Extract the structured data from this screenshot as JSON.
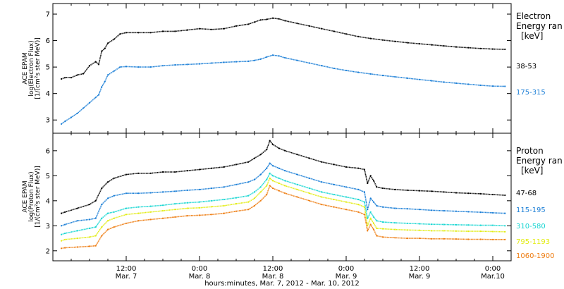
{
  "colors": {
    "black": "#000000",
    "blue": "#1a7ed6",
    "cyan": "#18d6d2",
    "yellow": "#e2ec14",
    "orange": "#ee7d12"
  },
  "x_axis": {
    "label": "hours:minutes, Mar.  7, 2012 - Mar. 10, 2012",
    "ticks": [
      {
        "time": "12:00",
        "date": "Mar. 7",
        "hours": 12
      },
      {
        "time": "0:00",
        "date": "Mar. 8",
        "hours": 24
      },
      {
        "time": "12:00",
        "date": "Mar. 8",
        "hours": 36
      },
      {
        "time": "0:00",
        "date": "Mar. 9",
        "hours": 48
      },
      {
        "time": "12:00",
        "date": "Mar. 9",
        "hours": 60
      },
      {
        "time": "0:00",
        "date": "Mar.10",
        "hours": 72
      }
    ]
  },
  "chart_data": [
    {
      "type": "scatter",
      "ylabel_line1": "ACE EPAM",
      "ylabel_line2": "log(Electron Flux)",
      "ylabel_line3": "[1/(cm²s ster MeV)]",
      "ylim": [
        2.5,
        7.4
      ],
      "yticks": [
        3,
        4,
        5,
        6,
        7
      ],
      "legend_title_line1": "Electron",
      "legend_title_line2": "Energy ran",
      "legend_unit": "[keV]",
      "series": [
        {
          "name": "38-53",
          "color": "#000000",
          "x": [
            1.4,
            2,
            3,
            4,
            5,
            6,
            7,
            7.5,
            8,
            8.5,
            9,
            10,
            11,
            12,
            14,
            16,
            18,
            20,
            22,
            24,
            26,
            28,
            30,
            32,
            33,
            34,
            35,
            36,
            37,
            38,
            40,
            42,
            44,
            46,
            48,
            50,
            52,
            54,
            56,
            58,
            60,
            62,
            64,
            66,
            68,
            70,
            72,
            74
          ],
          "y": [
            4.55,
            4.6,
            4.6,
            4.7,
            4.75,
            5.05,
            5.2,
            5.1,
            5.6,
            5.7,
            5.9,
            6.05,
            6.25,
            6.3,
            6.3,
            6.3,
            6.35,
            6.35,
            6.4,
            6.45,
            6.42,
            6.45,
            6.55,
            6.62,
            6.7,
            6.78,
            6.8,
            6.85,
            6.82,
            6.75,
            6.65,
            6.55,
            6.45,
            6.35,
            6.25,
            6.15,
            6.08,
            6.02,
            5.97,
            5.92,
            5.88,
            5.84,
            5.8,
            5.76,
            5.73,
            5.7,
            5.68,
            5.67
          ]
        },
        {
          "name": "175-315",
          "color": "#1a7ed6",
          "x": [
            1.4,
            2,
            3,
            4,
            5,
            6,
            7,
            7.5,
            8,
            8.5,
            9,
            10,
            11,
            12,
            14,
            16,
            18,
            20,
            22,
            24,
            26,
            28,
            30,
            32,
            33,
            34,
            35,
            36,
            37,
            38,
            40,
            42,
            44,
            46,
            48,
            50,
            52,
            54,
            56,
            58,
            60,
            62,
            64,
            66,
            68,
            70,
            72,
            74
          ],
          "y": [
            2.85,
            2.95,
            3.1,
            3.25,
            3.45,
            3.65,
            3.85,
            3.95,
            4.25,
            4.45,
            4.7,
            4.85,
            5.0,
            5.02,
            5.0,
            5.0,
            5.05,
            5.08,
            5.1,
            5.12,
            5.15,
            5.18,
            5.2,
            5.22,
            5.25,
            5.3,
            5.38,
            5.45,
            5.42,
            5.35,
            5.25,
            5.15,
            5.05,
            4.95,
            4.87,
            4.8,
            4.74,
            4.68,
            4.63,
            4.58,
            4.53,
            4.48,
            4.43,
            4.39,
            4.35,
            4.31,
            4.28,
            4.27
          ]
        }
      ]
    },
    {
      "type": "scatter",
      "ylabel_line1": "ACE EPAM",
      "ylabel_line2": "log(Proton Flux)",
      "ylabel_line3": "[1/(cm²s ster MeV)]",
      "ylim": [
        1.6,
        6.7
      ],
      "yticks": [
        2,
        3,
        4,
        5,
        6
      ],
      "legend_title_line1": "Proton",
      "legend_title_line2": "Energy ran",
      "legend_unit": "[keV]",
      "series": [
        {
          "name": "47-68",
          "color": "#000000",
          "x": [
            1.4,
            2,
            4,
            6,
            7,
            8,
            9,
            10,
            12,
            14,
            16,
            18,
            20,
            22,
            24,
            26,
            28,
            30,
            32,
            33,
            34,
            35,
            35.5,
            36,
            37,
            38,
            40,
            42,
            44,
            46,
            48,
            50,
            51,
            51.5,
            52,
            52.5,
            53,
            54,
            56,
            58,
            60,
            62,
            64,
            66,
            68,
            70,
            72,
            74
          ],
          "y": [
            3.5,
            3.55,
            3.7,
            3.85,
            4.0,
            4.5,
            4.75,
            4.9,
            5.05,
            5.1,
            5.1,
            5.15,
            5.15,
            5.2,
            5.25,
            5.3,
            5.35,
            5.45,
            5.55,
            5.7,
            5.85,
            6.05,
            6.4,
            6.25,
            6.1,
            6.0,
            5.85,
            5.7,
            5.55,
            5.45,
            5.35,
            5.3,
            5.25,
            4.7,
            5.0,
            4.8,
            4.55,
            4.5,
            4.45,
            4.42,
            4.4,
            4.38,
            4.35,
            4.32,
            4.3,
            4.28,
            4.25,
            4.22
          ]
        },
        {
          "name": "115-195",
          "color": "#1a7ed6",
          "x": [
            1.4,
            2,
            4,
            6,
            7,
            8,
            9,
            10,
            12,
            14,
            16,
            18,
            20,
            22,
            24,
            26,
            28,
            30,
            32,
            33,
            34,
            35,
            35.5,
            36,
            37,
            38,
            40,
            42,
            44,
            46,
            48,
            50,
            51,
            51.5,
            52,
            52.5,
            53,
            54,
            56,
            58,
            60,
            62,
            64,
            66,
            68,
            70,
            72,
            74
          ],
          "y": [
            3.0,
            3.05,
            3.2,
            3.25,
            3.3,
            3.85,
            4.1,
            4.2,
            4.3,
            4.3,
            4.32,
            4.35,
            4.38,
            4.42,
            4.45,
            4.5,
            4.55,
            4.65,
            4.75,
            4.85,
            5.05,
            5.3,
            5.5,
            5.4,
            5.3,
            5.2,
            5.05,
            4.9,
            4.75,
            4.65,
            4.55,
            4.45,
            4.35,
            3.65,
            4.1,
            3.95,
            3.8,
            3.75,
            3.7,
            3.68,
            3.65,
            3.62,
            3.6,
            3.58,
            3.56,
            3.54,
            3.52,
            3.5
          ]
        },
        {
          "name": "310-580",
          "color": "#18d6d2",
          "x": [
            1.4,
            2,
            4,
            6,
            7,
            8,
            9,
            10,
            12,
            14,
            16,
            18,
            20,
            22,
            24,
            26,
            28,
            30,
            32,
            33,
            34,
            35,
            35.5,
            36,
            37,
            38,
            40,
            42,
            44,
            46,
            48,
            50,
            51,
            51.5,
            52,
            52.5,
            53,
            54,
            56,
            58,
            60,
            62,
            64,
            66,
            68,
            70,
            72,
            74
          ],
          "y": [
            2.65,
            2.7,
            2.8,
            2.9,
            2.95,
            3.3,
            3.5,
            3.55,
            3.7,
            3.75,
            3.78,
            3.82,
            3.88,
            3.92,
            3.95,
            4.0,
            4.05,
            4.12,
            4.2,
            4.35,
            4.55,
            4.85,
            5.1,
            5.0,
            4.9,
            4.8,
            4.65,
            4.5,
            4.35,
            4.25,
            4.15,
            4.05,
            3.95,
            3.3,
            3.55,
            3.35,
            3.2,
            3.15,
            3.12,
            3.1,
            3.08,
            3.06,
            3.05,
            3.04,
            3.03,
            3.02,
            3.02,
            3.0
          ]
        },
        {
          "name": "795-1193",
          "color": "#e2ec14",
          "x": [
            1.4,
            2,
            4,
            6,
            7,
            8,
            9,
            10,
            12,
            14,
            16,
            18,
            20,
            22,
            24,
            26,
            28,
            30,
            32,
            33,
            34,
            35,
            35.5,
            36,
            37,
            38,
            40,
            42,
            44,
            46,
            48,
            50,
            51,
            51.5,
            52,
            52.5,
            53,
            54,
            56,
            58,
            60,
            62,
            64,
            66,
            68,
            70,
            72,
            74
          ],
          "y": [
            2.4,
            2.45,
            2.5,
            2.55,
            2.6,
            2.95,
            3.2,
            3.3,
            3.45,
            3.5,
            3.55,
            3.6,
            3.65,
            3.7,
            3.72,
            3.76,
            3.8,
            3.88,
            3.95,
            4.1,
            4.35,
            4.6,
            4.9,
            4.8,
            4.7,
            4.6,
            4.45,
            4.3,
            4.15,
            4.05,
            3.95,
            3.85,
            3.75,
            3.0,
            3.3,
            3.1,
            2.9,
            2.88,
            2.85,
            2.83,
            2.82,
            2.8,
            2.8,
            2.79,
            2.78,
            2.78,
            2.77,
            2.76
          ]
        },
        {
          "name": "1060-1900",
          "color": "#ee7d12",
          "x": [
            1.4,
            2,
            4,
            6,
            7,
            8,
            9,
            10,
            12,
            14,
            16,
            18,
            20,
            22,
            24,
            26,
            28,
            30,
            32,
            33,
            34,
            35,
            35.5,
            36,
            37,
            38,
            40,
            42,
            44,
            46,
            48,
            50,
            51,
            51.5,
            52,
            52.5,
            53,
            54,
            56,
            58,
            60,
            62,
            64,
            66,
            68,
            70,
            72,
            74
          ],
          "y": [
            2.1,
            2.12,
            2.15,
            2.18,
            2.2,
            2.6,
            2.85,
            2.95,
            3.1,
            3.2,
            3.25,
            3.3,
            3.35,
            3.4,
            3.42,
            3.45,
            3.5,
            3.58,
            3.65,
            3.8,
            4.0,
            4.25,
            4.6,
            4.5,
            4.4,
            4.3,
            4.15,
            4.0,
            3.85,
            3.75,
            3.65,
            3.55,
            3.45,
            2.8,
            3.05,
            2.85,
            2.6,
            2.55,
            2.52,
            2.5,
            2.5,
            2.48,
            2.48,
            2.47,
            2.46,
            2.46,
            2.45,
            2.45
          ]
        }
      ]
    }
  ]
}
